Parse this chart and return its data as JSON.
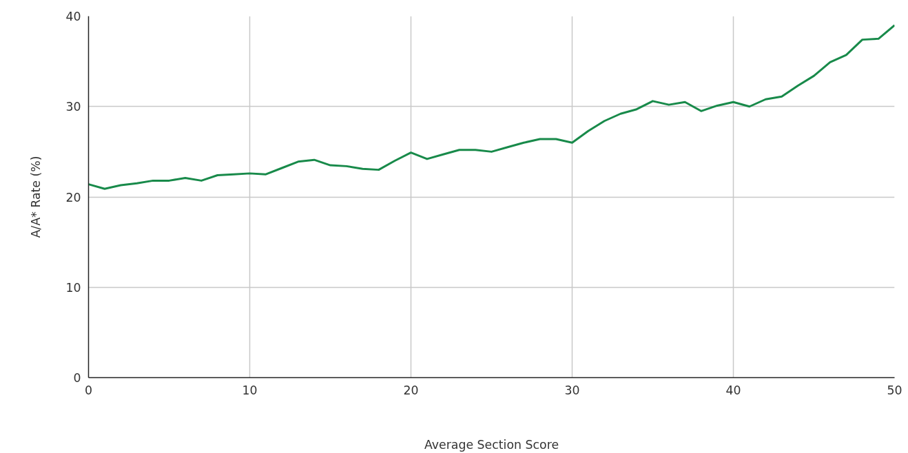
{
  "chart_data": {
    "type": "line",
    "xlabel": "Average Section Score",
    "ylabel": "A/A* Rate (%)",
    "x": [
      0,
      1,
      2,
      3,
      4,
      5,
      6,
      7,
      8,
      9,
      10,
      11,
      12,
      13,
      14,
      15,
      16,
      17,
      18,
      19,
      20,
      21,
      22,
      23,
      24,
      25,
      26,
      27,
      28,
      29,
      30,
      31,
      32,
      33,
      34,
      35,
      36,
      37,
      38,
      39,
      40,
      41,
      42,
      43,
      44,
      45,
      46,
      47,
      48,
      49,
      50
    ],
    "series": [
      {
        "color": "#188a4a",
        "values": [
          21.4,
          20.9,
          21.3,
          21.5,
          21.8,
          21.8,
          22.1,
          21.8,
          22.4,
          22.5,
          22.6,
          22.5,
          23.2,
          23.9,
          24.1,
          23.5,
          23.4,
          23.1,
          23.0,
          24.0,
          24.9,
          24.2,
          24.7,
          25.2,
          25.2,
          25.0,
          25.5,
          26.0,
          26.4,
          26.4,
          26.0,
          27.3,
          28.4,
          29.2,
          29.7,
          30.6,
          30.2,
          30.5,
          29.5,
          30.1,
          30.5,
          30.0,
          30.8,
          31.1,
          32.3,
          33.4,
          34.9,
          35.7,
          37.4,
          37.5,
          39.0
        ]
      }
    ],
    "xlim": [
      0,
      50
    ],
    "ylim": [
      0,
      40
    ],
    "xticks": [
      0,
      10,
      20,
      30,
      40,
      50
    ],
    "yticks": [
      0,
      10,
      20,
      30,
      40
    ],
    "grid": true,
    "marker": "none",
    "line_style": "solid"
  }
}
